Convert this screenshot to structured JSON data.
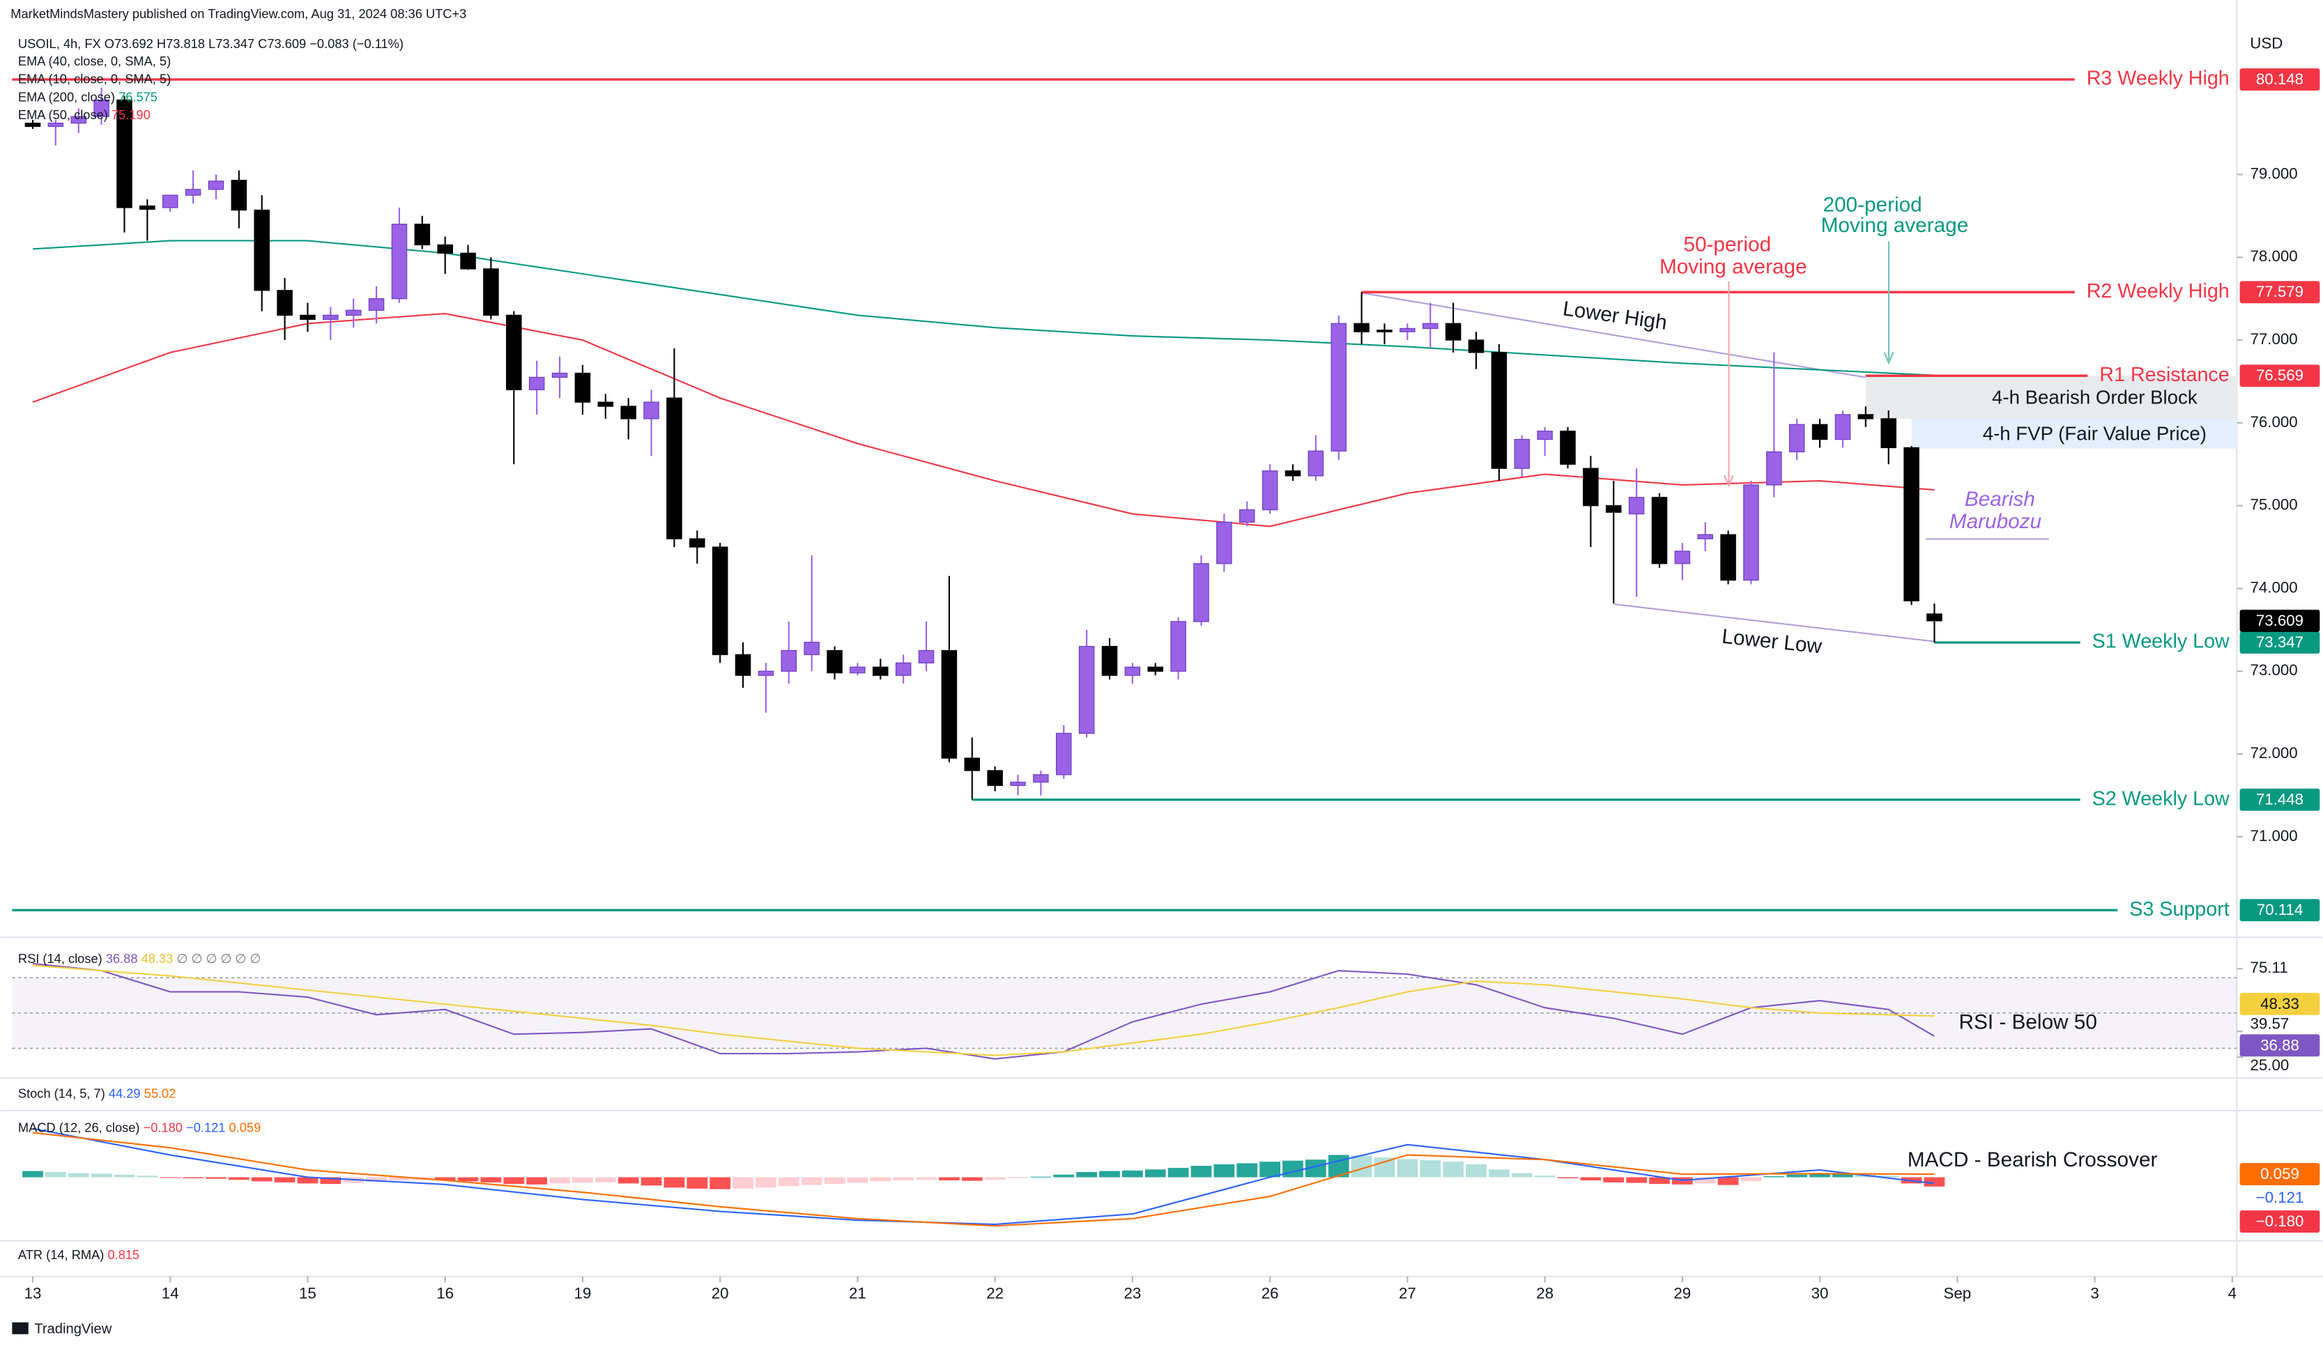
{
  "page": {
    "published": "MarketMindsMastery published on TradingView.com, Aug 31, 2024 08:36 UTC+3",
    "brand": "TradingView"
  },
  "chart_data": {
    "type": "candlestick",
    "title": "USOIL, 4h, FX",
    "ohlc": "O73.692 H73.818 L73.347 C73.609 −0.083 (−0.11%)",
    "currency": "USD",
    "up_color": "#9a63e6",
    "down_color": "#000000",
    "candles": [
      [
        79.62,
        79.66,
        79.55,
        79.58
      ],
      [
        79.58,
        79.66,
        79.35,
        79.62
      ],
      [
        79.62,
        79.8,
        79.5,
        79.7
      ],
      [
        79.7,
        80.05,
        79.6,
        79.9
      ],
      [
        79.9,
        79.95,
        78.3,
        78.6
      ],
      [
        78.62,
        78.7,
        78.2,
        78.58
      ],
      [
        78.6,
        78.7,
        78.55,
        78.75
      ],
      [
        78.75,
        79.05,
        78.65,
        78.82
      ],
      [
        78.82,
        79.0,
        78.7,
        78.92
      ],
      [
        78.93,
        79.05,
        78.35,
        78.57
      ],
      [
        78.57,
        78.75,
        77.35,
        77.6
      ],
      [
        77.6,
        77.75,
        77.0,
        77.3
      ],
      [
        77.3,
        77.45,
        77.1,
        77.25
      ],
      [
        77.25,
        77.4,
        77.0,
        77.3
      ],
      [
        77.3,
        77.5,
        77.15,
        77.36
      ],
      [
        77.36,
        77.65,
        77.2,
        77.5
      ],
      [
        77.5,
        78.6,
        77.45,
        78.4
      ],
      [
        78.4,
        78.5,
        78.1,
        78.15
      ],
      [
        78.15,
        78.25,
        77.8,
        78.05
      ],
      [
        78.05,
        78.15,
        77.85,
        77.86
      ],
      [
        77.86,
        78.0,
        77.25,
        77.3
      ],
      [
        77.3,
        77.35,
        75.5,
        76.4
      ],
      [
        76.4,
        76.75,
        76.1,
        76.55
      ],
      [
        76.55,
        76.8,
        76.3,
        76.6
      ],
      [
        76.6,
        76.7,
        76.1,
        76.25
      ],
      [
        76.25,
        76.35,
        76.05,
        76.2
      ],
      [
        76.2,
        76.3,
        75.8,
        76.05
      ],
      [
        76.05,
        76.4,
        75.6,
        76.25
      ],
      [
        76.3,
        76.9,
        74.5,
        74.6
      ],
      [
        74.6,
        74.7,
        74.3,
        74.5
      ],
      [
        74.5,
        74.55,
        73.1,
        73.2
      ],
      [
        73.2,
        73.35,
        72.8,
        72.95
      ],
      [
        72.95,
        73.1,
        72.5,
        73.0
      ],
      [
        73.0,
        73.6,
        72.85,
        73.25
      ],
      [
        73.2,
        74.4,
        73.0,
        73.35
      ],
      [
        73.25,
        73.3,
        72.9,
        72.98
      ],
      [
        72.98,
        73.1,
        72.95,
        73.05
      ],
      [
        73.05,
        73.15,
        72.9,
        72.95
      ],
      [
        72.95,
        73.2,
        72.85,
        73.1
      ],
      [
        73.1,
        73.6,
        73.0,
        73.25
      ],
      [
        73.25,
        74.15,
        71.9,
        71.95
      ],
      [
        71.95,
        72.2,
        71.45,
        71.8
      ],
      [
        71.8,
        71.85,
        71.55,
        71.62
      ],
      [
        71.62,
        71.75,
        71.5,
        71.66
      ],
      [
        71.66,
        71.8,
        71.5,
        71.75
      ],
      [
        71.75,
        72.35,
        71.7,
        72.25
      ],
      [
        72.25,
        73.5,
        72.2,
        73.3
      ],
      [
        73.3,
        73.4,
        72.9,
        72.95
      ],
      [
        72.95,
        73.1,
        72.85,
        73.05
      ],
      [
        73.05,
        73.1,
        72.95,
        73.0
      ],
      [
        73.0,
        73.65,
        72.9,
        73.6
      ],
      [
        73.6,
        74.4,
        73.55,
        74.3
      ],
      [
        74.3,
        74.9,
        74.2,
        74.8
      ],
      [
        74.8,
        75.05,
        74.75,
        74.95
      ],
      [
        74.95,
        75.5,
        74.9,
        75.42
      ],
      [
        75.42,
        75.5,
        75.3,
        75.36
      ],
      [
        75.36,
        75.85,
        75.3,
        75.66
      ],
      [
        75.66,
        77.3,
        75.55,
        77.2
      ],
      [
        77.2,
        77.58,
        76.95,
        77.1
      ],
      [
        77.12,
        77.2,
        76.95,
        77.1
      ],
      [
        77.1,
        77.2,
        77.0,
        77.14
      ],
      [
        77.14,
        77.45,
        76.9,
        77.2
      ],
      [
        77.2,
        77.45,
        76.85,
        77.0
      ],
      [
        77.0,
        77.1,
        76.65,
        76.85
      ],
      [
        76.85,
        76.95,
        75.3,
        75.45
      ],
      [
        75.45,
        75.85,
        75.35,
        75.8
      ],
      [
        75.8,
        75.95,
        75.6,
        75.9
      ],
      [
        75.9,
        75.95,
        75.45,
        75.5
      ],
      [
        75.45,
        75.6,
        74.5,
        75.0
      ],
      [
        75.0,
        75.3,
        73.82,
        74.92
      ],
      [
        74.9,
        75.45,
        73.9,
        75.1
      ],
      [
        75.1,
        75.15,
        74.25,
        74.3
      ],
      [
        74.3,
        74.55,
        74.1,
        74.45
      ],
      [
        74.6,
        74.8,
        74.45,
        74.65
      ],
      [
        74.65,
        74.7,
        74.05,
        74.1
      ],
      [
        74.1,
        75.3,
        74.05,
        75.25
      ],
      [
        75.25,
        76.85,
        75.1,
        75.65
      ],
      [
        75.65,
        76.05,
        75.55,
        75.98
      ],
      [
        75.98,
        76.05,
        75.7,
        75.8
      ],
      [
        75.8,
        76.15,
        75.7,
        76.1
      ],
      [
        76.1,
        76.2,
        75.95,
        76.05
      ],
      [
        76.05,
        76.15,
        75.5,
        75.7
      ],
      [
        75.7,
        75.72,
        73.8,
        73.85
      ],
      [
        73.692,
        73.818,
        73.347,
        73.609
      ]
    ],
    "xlim": [
      -0.9,
      96.2
    ],
    "xticks": [
      {
        "value": 0,
        "label": "13"
      },
      {
        "value": 6,
        "label": "14"
      },
      {
        "value": 12,
        "label": "15"
      },
      {
        "value": 18,
        "label": "16"
      },
      {
        "value": 24,
        "label": "19"
      },
      {
        "value": 30,
        "label": "20"
      },
      {
        "value": 36,
        "label": "21"
      },
      {
        "value": 42,
        "label": "22"
      },
      {
        "value": 48,
        "label": "23"
      },
      {
        "value": 54,
        "label": "26"
      },
      {
        "value": 60,
        "label": "27"
      },
      {
        "value": 66,
        "label": "28"
      },
      {
        "value": 72,
        "label": "29"
      },
      {
        "value": 78,
        "label": "30"
      },
      {
        "value": 84,
        "label": "Sep"
      },
      {
        "value": 90,
        "label": "3"
      },
      {
        "value": 96,
        "label": "4"
      }
    ],
    "ylim": [
      69.875,
      80.75
    ],
    "yticks": [
      {
        "value": 71,
        "label": "71.000"
      },
      {
        "value": 72,
        "label": "72.000"
      },
      {
        "value": 73,
        "label": "73.000"
      },
      {
        "value": 74,
        "label": "74.000"
      },
      {
        "value": 75,
        "label": "75.000"
      },
      {
        "value": 76,
        "label": "76.000"
      },
      {
        "value": 77,
        "label": "77.000"
      },
      {
        "value": 78,
        "label": "78.000"
      },
      {
        "value": 79,
        "label": "79.000"
      }
    ],
    "last_price": 73.609,
    "hidden_averages": [
      "EMA (40, close, 0, SMA, 5)",
      "EMA (10, close, 0, SMA, 5)"
    ],
    "moving_averages": [
      {
        "name": "EMA (200, close)",
        "value": 76.575,
        "color": "#089981",
        "x": [
          0,
          6,
          12,
          18,
          24,
          30,
          36,
          42,
          48,
          54,
          60,
          66,
          72,
          78,
          83
        ],
        "values": [
          78.1,
          78.2,
          78.2,
          78.05,
          77.8,
          77.55,
          77.3,
          77.15,
          77.05,
          77.0,
          76.92,
          76.82,
          76.72,
          76.64,
          76.575
        ]
      },
      {
        "name": "EMA (50, close)",
        "value": {
          "value": 75.19,
          "label": "75.190"
        },
        "color": "#f23645",
        "x": [
          0,
          6,
          12,
          18,
          24,
          30,
          36,
          42,
          48,
          54,
          60,
          66,
          72,
          78,
          83
        ],
        "values": [
          76.25,
          76.85,
          77.2,
          77.32,
          77.0,
          76.3,
          75.75,
          75.3,
          74.9,
          74.75,
          75.15,
          75.38,
          75.25,
          75.3,
          75.19
        ]
      }
    ],
    "levels": [
      {
        "label": "R3 Weekly High",
        "value": 80.148,
        "start": -0.9,
        "color": "#f23645"
      },
      {
        "label": "R2 Weekly High",
        "value": 77.579,
        "start": 58,
        "color": "#f23645"
      },
      {
        "label": "R1 Resistance",
        "value": 76.569,
        "start": 80,
        "color": "#f23645"
      },
      {
        "label": "S1 Weekly Low",
        "value": 73.347,
        "start": 83,
        "color": "#089981"
      },
      {
        "label": "S2 Weekly Low",
        "value": 71.448,
        "start": 41,
        "color": "#089981"
      },
      {
        "label": "S3 Support",
        "value": 70.114,
        "start": -0.9,
        "color": "#089981"
      }
    ],
    "zones": [
      {
        "label": "4-h Bearish Order Block",
        "from": 80,
        "y": [
          76.05,
          76.569
        ],
        "color": "#e8eaed"
      },
      {
        "label": "4-h FVP (Fair Value Price)",
        "from": 82,
        "y": [
          75.69,
          76.05
        ],
        "color": "#e3effd"
      }
    ],
    "trendlines": [
      {
        "label": "Lower High",
        "x": [
          58,
          80
        ],
        "y": [
          77.57,
          76.55
        ],
        "color": "#b39ddb"
      },
      {
        "label": "Lower Low",
        "x": [
          69,
          83
        ],
        "y": [
          73.81,
          73.36
        ],
        "color": "#b39ddb"
      }
    ],
    "annotations": {
      "ma50": [
        "50-period",
        "Moving average"
      ],
      "ma200": [
        "200-period",
        "Moving average"
      ],
      "marubozu": [
        "Bearish",
        "Marubozu"
      ],
      "rsi": "RSI - Below 50",
      "macd": "MACD - Bearish Crossover"
    },
    "rsi": {
      "name": "RSI (14, close)",
      "extra": "∅ ∅ ∅ ∅ ∅ ∅",
      "ylim": [
        14,
        87
      ],
      "levels": [
        70,
        50,
        30
      ],
      "yticks": [
        75.11,
        39.57,
        {
          "value": 25,
          "label": "25.00"
        }
      ],
      "series": [
        {
          "name": "RSI",
          "color": "#7e57c2",
          "x": [
            0,
            3,
            6,
            9,
            12,
            15,
            18,
            21,
            24,
            27,
            30,
            33,
            36,
            39,
            42,
            45,
            48,
            51,
            54,
            57,
            60,
            63,
            66,
            69,
            72,
            75,
            78,
            81,
            83
          ],
          "values": [
            78,
            74,
            62,
            62,
            59,
            49,
            52,
            38,
            39,
            41,
            27,
            27,
            28,
            30,
            24,
            28,
            45,
            55,
            62,
            74,
            72,
            66,
            53,
            47,
            38,
            53,
            57,
            52,
            36.88
          ]
        },
        {
          "name": "RSI MA",
          "color": "#f4d03f",
          "x": [
            0,
            3,
            6,
            9,
            12,
            15,
            18,
            21,
            24,
            27,
            30,
            33,
            36,
            39,
            42,
            45,
            48,
            51,
            54,
            57,
            60,
            63,
            66,
            69,
            72,
            75,
            78,
            81,
            83
          ],
          "values": [
            77,
            74,
            71,
            67,
            63,
            59,
            55,
            51,
            47,
            43,
            38,
            34,
            30,
            28,
            26,
            28,
            33,
            38,
            45,
            53,
            62,
            68,
            66,
            62,
            58,
            53,
            50,
            49,
            48.33
          ]
        }
      ]
    },
    "stoch": {
      "name": "Stoch (14, 5, 7)",
      "k": 44.29,
      "d": 55.02
    },
    "macd": {
      "name": "MACD (12, 26, close)",
      "ylim": [
        -1.23,
        1.23
      ],
      "histogram": [
        0.12,
        0.1,
        0.08,
        0.07,
        0.05,
        0.03,
        -0.01,
        -0.02,
        -0.03,
        -0.05,
        -0.08,
        -0.1,
        -0.12,
        -0.13,
        -0.11,
        -0.09,
        -0.06,
        -0.05,
        -0.06,
        -0.08,
        -0.1,
        -0.13,
        -0.14,
        -0.12,
        -0.11,
        -0.1,
        -0.12,
        -0.16,
        -0.2,
        -0.22,
        -0.23,
        -0.22,
        -0.2,
        -0.17,
        -0.15,
        -0.13,
        -0.11,
        -0.08,
        -0.06,
        -0.05,
        -0.06,
        -0.07,
        -0.05,
        -0.02,
        0.01,
        0.05,
        0.1,
        0.12,
        0.13,
        0.15,
        0.18,
        0.22,
        0.25,
        0.27,
        0.3,
        0.32,
        0.34,
        0.43,
        0.42,
        0.38,
        0.35,
        0.33,
        0.3,
        0.25,
        0.15,
        0.08,
        0.03,
        -0.02,
        -0.06,
        -0.1,
        -0.11,
        -0.13,
        -0.14,
        -0.12,
        -0.15,
        -0.08,
        0.02,
        0.05,
        0.07,
        0.08,
        0.06,
        0.03,
        -0.12,
        -0.18
      ],
      "histogram_last": {
        "value": -0.18,
        "label": "−0.180"
      },
      "series": [
        {
          "name": "MACD",
          "color": "#2962ff",
          "x": [
            0,
            6,
            12,
            18,
            24,
            30,
            36,
            42,
            48,
            54,
            60,
            66,
            72,
            78,
            83
          ],
          "values": [
            0.94,
            0.43,
            0.0,
            -0.14,
            -0.43,
            -0.66,
            -0.83,
            -0.91,
            -0.71,
            0.0,
            0.63,
            0.34,
            -0.06,
            0.14,
            -0.121
          ],
          "last": {
            "value": -0.121,
            "label": "−0.121"
          }
        },
        {
          "name": "Signal",
          "color": "#ff6d00",
          "x": [
            0,
            6,
            12,
            18,
            24,
            30,
            36,
            42,
            48,
            54,
            60,
            66,
            72,
            78,
            83
          ],
          "values": [
            0.86,
            0.57,
            0.14,
            -0.06,
            -0.29,
            -0.57,
            -0.8,
            -0.94,
            -0.8,
            -0.37,
            0.43,
            0.34,
            0.06,
            0.07,
            0.059
          ],
          "last": 0.059
        }
      ]
    },
    "atr": {
      "name": "ATR (14, RMA)",
      "value": 0.815
    }
  }
}
